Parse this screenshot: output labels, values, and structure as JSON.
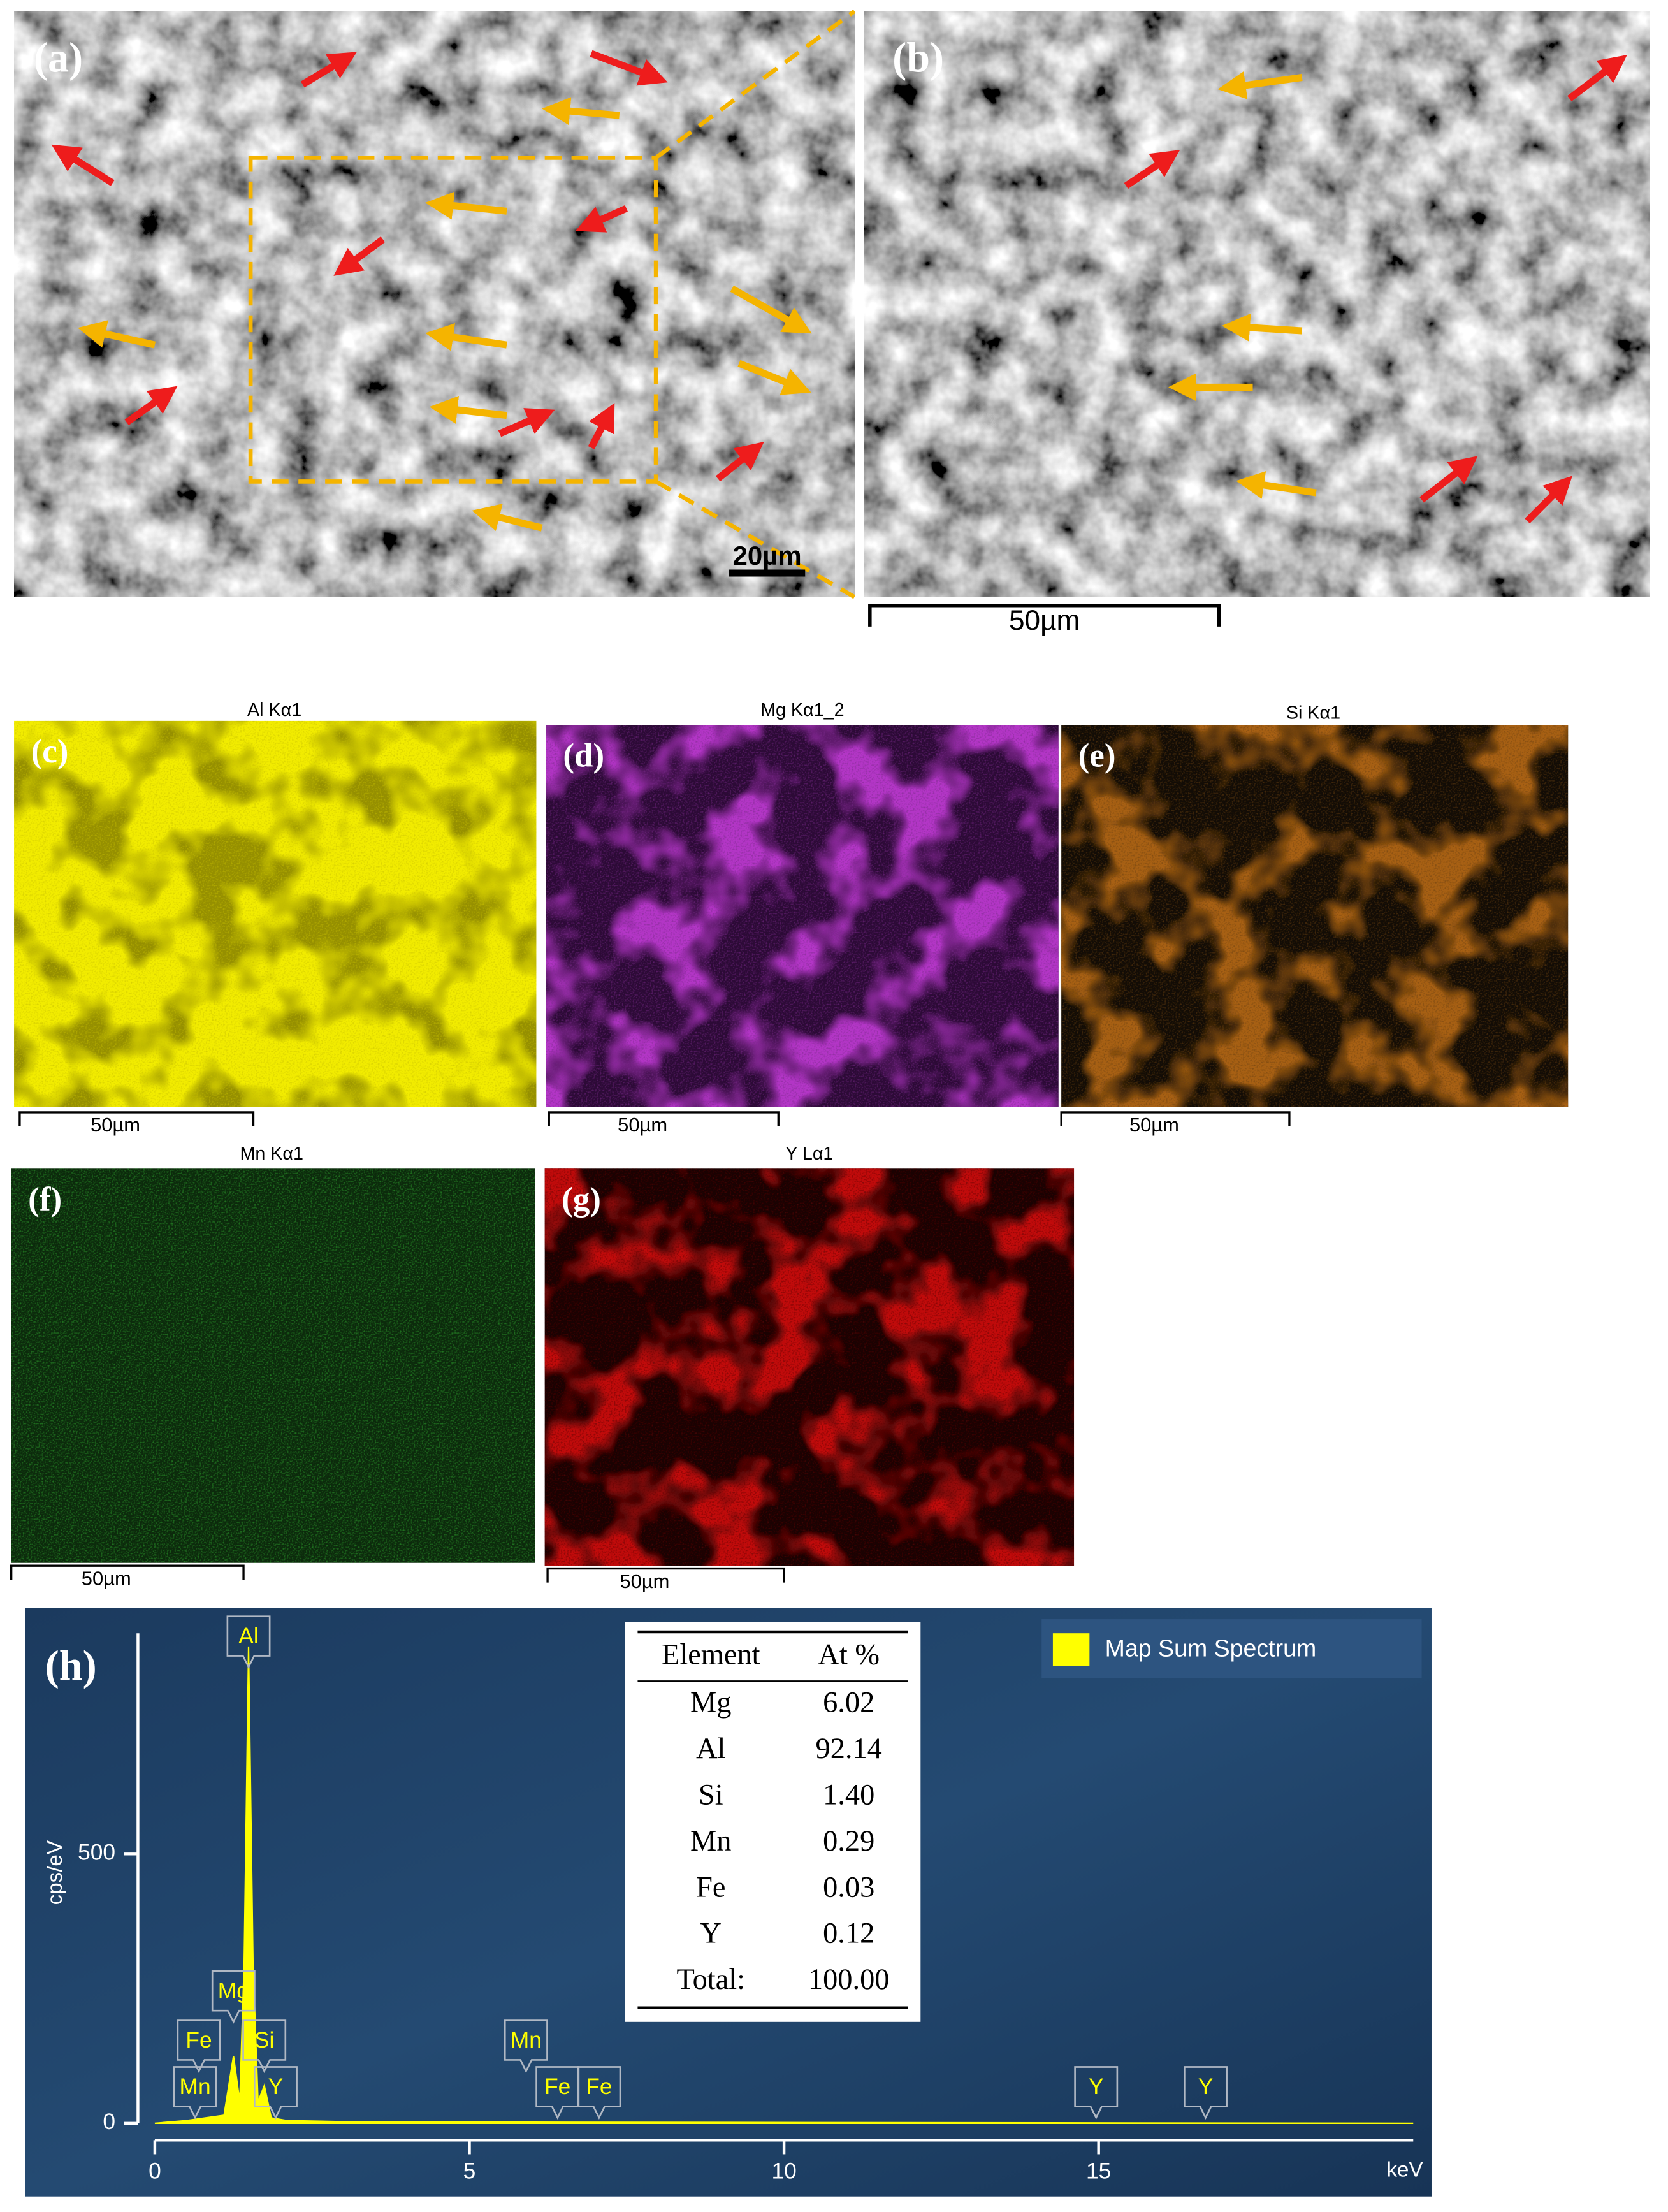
{
  "panels": [
    {
      "label": "(a)",
      "scale_bar": "20µm"
    },
    {
      "label": "(b)",
      "scale_bar": "50µm"
    },
    {
      "label": "(c)",
      "title": "Al Kα1",
      "scale_bar": "50µm"
    },
    {
      "label": "(d)",
      "title": "Mg Kα1_2",
      "scale_bar": "50µm"
    },
    {
      "label": "(e)",
      "title": "Si Kα1",
      "scale_bar": "50µm"
    },
    {
      "label": "(f)",
      "title": "Mn Kα1",
      "scale_bar": "50µm"
    },
    {
      "label": "(g)",
      "title": "Y Lα1",
      "scale_bar": "50µm"
    }
  ],
  "spectrum": {
    "type": "line",
    "label": "(h)",
    "y_label": "cps/eV",
    "x_label": "keV",
    "xlim": [
      0,
      20
    ],
    "xticks": [
      0,
      5,
      10,
      15
    ],
    "ylim": [
      0,
      920
    ],
    "yticks": [
      0,
      500
    ],
    "series": [
      {
        "name": "Map Sum Spectrum",
        "color": "#ffff00",
        "x": [
          0,
          0.5,
          1.1,
          1.25,
          1.35,
          1.42,
          1.49,
          1.56,
          1.64,
          1.74,
          1.85,
          2.1,
          3,
          6,
          20
        ],
        "values": [
          0,
          5,
          15,
          125,
          40,
          300,
          885,
          300,
          40,
          70,
          10,
          5,
          3,
          2,
          0
        ]
      }
    ],
    "peaks": [
      {
        "label": "Al",
        "x": 1.49
      },
      {
        "label": "Mg",
        "x": 1.25
      },
      {
        "label": "Fe",
        "x": 0.7
      },
      {
        "label": "Si",
        "x": 1.74
      },
      {
        "label": "Mn",
        "x": 0.64
      },
      {
        "label": "Y",
        "x": 1.92
      },
      {
        "label": "Mn",
        "x": 5.9
      },
      {
        "label": "Fe",
        "x": 6.4
      },
      {
        "label": "Fe",
        "x": 7.06
      },
      {
        "label": "Y",
        "x": 14.96
      },
      {
        "label": "Y",
        "x": 16.7
      }
    ],
    "table": {
      "header": [
        "Element",
        "At %"
      ],
      "rows": [
        [
          "Mg",
          "6.02"
        ],
        [
          "Al",
          "92.14"
        ],
        [
          "Si",
          "1.40"
        ],
        [
          "Mn",
          "0.29"
        ],
        [
          "Fe",
          "0.03"
        ],
        [
          "Y",
          "0.12"
        ],
        [
          "Total:",
          "100.00"
        ]
      ]
    }
  }
}
